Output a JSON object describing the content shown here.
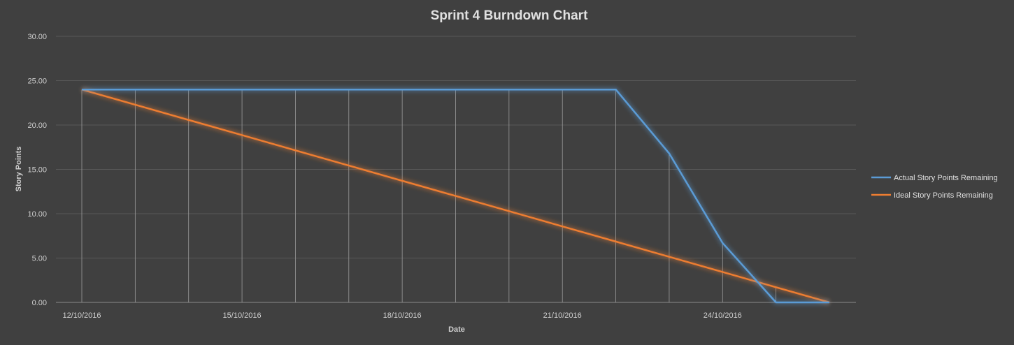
{
  "chart_data": {
    "type": "line",
    "title": "Sprint 4 Burndown Chart",
    "xlabel": "Date",
    "ylabel": "Story Points",
    "ylim": [
      0,
      30
    ],
    "yticks": [
      "0.00",
      "5.00",
      "10.00",
      "15.00",
      "20.00",
      "25.00",
      "30.00"
    ],
    "x": [
      "12/10/2016",
      "13/10/2016",
      "14/10/2016",
      "15/10/2016",
      "16/10/2016",
      "17/10/2016",
      "18/10/2016",
      "19/10/2016",
      "20/10/2016",
      "21/10/2016",
      "22/10/2016",
      "23/10/2016",
      "24/10/2016",
      "25/10/2016",
      "26/10/2016"
    ],
    "x_tick_labels": [
      "12/10/2016",
      "15/10/2016",
      "18/10/2016",
      "21/10/2016",
      "24/10/2016"
    ],
    "grid": true,
    "legend_position": "right",
    "series": [
      {
        "name": "Actual Story Points Remaining",
        "color": "#5b9bd5",
        "values": [
          24,
          24,
          24,
          24,
          24,
          24,
          24,
          24,
          24,
          24,
          24,
          16.8,
          6.7,
          0,
          0
        ]
      },
      {
        "name": "Ideal Story Points Remaining",
        "color": "#ed7d31",
        "values": [
          24,
          22.29,
          20.57,
          18.86,
          17.14,
          15.43,
          13.71,
          12,
          10.29,
          8.57,
          6.86,
          5.14,
          3.43,
          1.71,
          0
        ]
      }
    ]
  }
}
